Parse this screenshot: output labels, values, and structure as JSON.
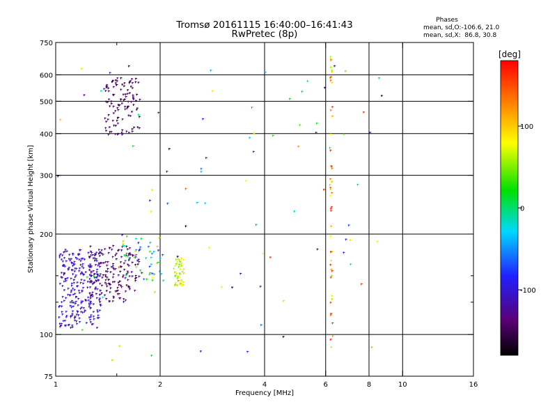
{
  "chart_data": {
    "type": "scatter",
    "title": "Tromsø 20161115 16:40:00–16:41:43",
    "subtitle": "RwPretec (8p)",
    "xlabel": "Frequency [MHz]",
    "ylabel": "Stationary phase Virtual Height [km]",
    "x_scale": "log",
    "y_scale": "log",
    "xlim": [
      1,
      16
    ],
    "ylim": [
      75,
      750
    ],
    "x_ticks": [
      1,
      2,
      4,
      6,
      8,
      10,
      16
    ],
    "x_tick_labels": [
      "1",
      "2",
      "4",
      "6",
      "8",
      "10",
      "16"
    ],
    "y_ticks": [
      75,
      100,
      200,
      300,
      400,
      500,
      600,
      750
    ],
    "y_tick_labels": [
      "75",
      "100",
      "200",
      "300",
      "400",
      "500",
      "600",
      "750"
    ],
    "x_minor": [
      1.5
    ],
    "y_minor": [
      125,
      150
    ],
    "grid": true,
    "stats": {
      "heading": "Phases",
      "line1": "mean, sd,O:-106.6, 21.0",
      "line2": "mean, sd,X:  86.8, 30.8"
    },
    "colorbar": {
      "label": "[deg]",
      "range": [
        -180,
        180
      ],
      "ticks": [
        -100,
        0,
        100
      ],
      "tick_labels": [
        "-100",
        "0",
        "100"
      ],
      "colormap": "rainbow: black - purple - blue - cyan - green - yellow - orange - red"
    },
    "clusters": [
      {
        "name": "low E-region blue cluster",
        "xr": [
          1.02,
          1.35
        ],
        "yr": [
          105,
          180
        ],
        "pr": [
          -125,
          -85
        ],
        "n": 260
      },
      {
        "name": "purple cluster",
        "xr": [
          1.25,
          1.75
        ],
        "yr": [
          125,
          185
        ],
        "pr": [
          -160,
          -120
        ],
        "n": 170
      },
      {
        "name": "upper F cluster",
        "xr": [
          1.38,
          1.75
        ],
        "yr": [
          395,
          590
        ],
        "pr": [
          -165,
          -130
        ],
        "n": 110
      },
      {
        "name": "green-yellow patch",
        "xr": [
          2.18,
          2.35
        ],
        "yr": [
          140,
          170
        ],
        "pr": [
          40,
          110
        ],
        "n": 45
      },
      {
        "name": "mixed transition",
        "xr": [
          1.55,
          2.05
        ],
        "yr": [
          145,
          200
        ],
        "pr": [
          -120,
          110
        ],
        "n": 55
      },
      {
        "name": "vertical column near 6.2 MHz",
        "xr": [
          6.18,
          6.28
        ],
        "yr": [
          80,
          690
        ],
        "pr": [
          50,
          175
        ],
        "n": 50
      },
      {
        "name": "sparse scatter",
        "xr": [
          1.0,
          9.0
        ],
        "yr": [
          80,
          690
        ],
        "pr": [
          -180,
          170
        ],
        "n": 90
      }
    ]
  }
}
